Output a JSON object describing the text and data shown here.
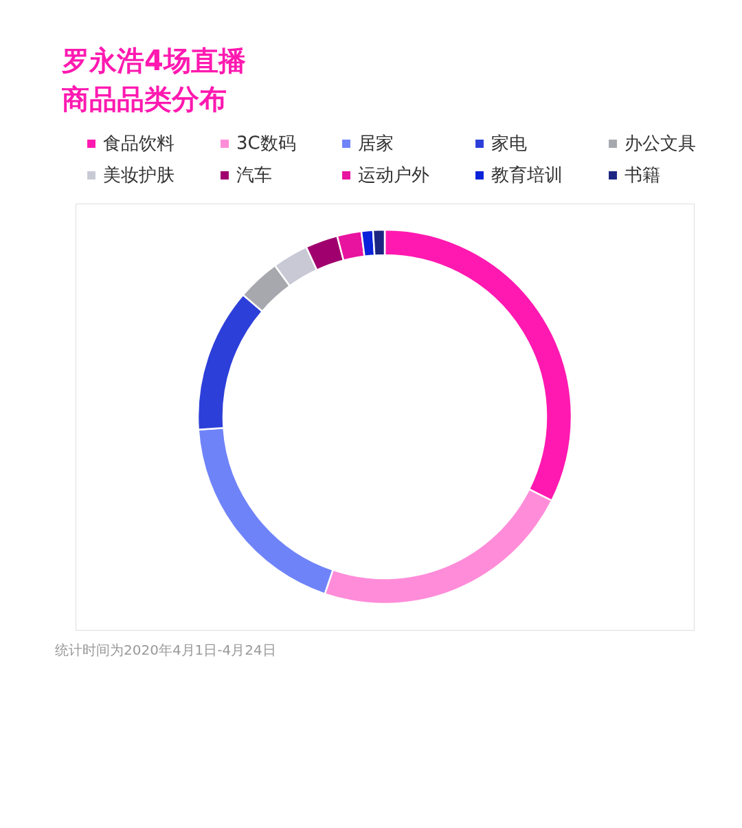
{
  "chart_data": {
    "type": "donut",
    "title": "罗永浩4场直播商品品类分布",
    "categories": [
      "食品饮料",
      "3C数码",
      "居家",
      "家电",
      "办公文具",
      "美妆护肤",
      "汽车",
      "运动户外",
      "教育培训",
      "书籍"
    ],
    "values": [
      32.4,
      22.8,
      18.7,
      12.4,
      3.7,
      3.1,
      2.8,
      2.1,
      1.0,
      1.0
    ],
    "colors": [
      "#ff19b0",
      "#ff8cd9",
      "#6f83f9",
      "#2d3fd9",
      "#a7a8ad",
      "#c9c9d6",
      "#a0006e",
      "#e8139f",
      "#0a22da",
      "#1c2682"
    ],
    "legend": "top",
    "annotations": [
      "统计时间为2020年4月1日-4月24日"
    ]
  }
}
